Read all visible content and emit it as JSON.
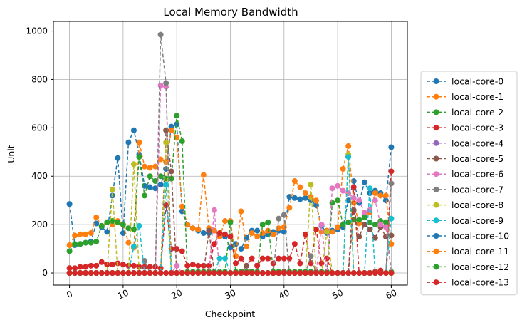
{
  "chart_data": {
    "type": "line",
    "title": "Local Memory Bandwidth",
    "xlabel": "Checkpoint",
    "ylabel": "Unit",
    "xlim": [
      -3,
      63
    ],
    "ylim": [
      -50,
      1040
    ],
    "x_ticks": [
      0,
      10,
      20,
      30,
      40,
      50,
      60
    ],
    "y_ticks": [
      0,
      200,
      400,
      600,
      800,
      1000
    ],
    "grid": true,
    "legend_position": "right-outside",
    "line_style": "dashed-with-markers",
    "series": [
      {
        "name": "local-core-0",
        "color": "#1f77b4",
        "values": [
          285,
          115,
          120,
          125,
          130,
          205,
          190,
          170,
          320,
          475,
          165,
          540,
          590,
          490,
          360,
          355,
          350,
          365,
          430,
          605,
          615,
          255,
          200,
          185,
          175,
          165,
          165,
          175,
          160,
          150,
          105,
          120,
          100,
          145,
          175,
          175,
          150,
          160,
          170,
          175,
          170,
          315,
          310,
          305,
          310,
          300,
          280,
          195,
          165,
          175,
          180,
          190,
          300,
          380,
          290,
          375,
          330,
          340,
          330,
          300,
          520
        ]
      },
      {
        "name": "local-core-1",
        "color": "#ff7f0e",
        "values": [
          115,
          155,
          160,
          160,
          165,
          230,
          195,
          210,
          200,
          215,
          200,
          125,
          105,
          540,
          440,
          435,
          440,
          470,
          460,
          590,
          560,
          275,
          200,
          185,
          180,
          405,
          185,
          175,
          150,
          215,
          215,
          70,
          255,
          110,
          165,
          150,
          165,
          175,
          160,
          185,
          190,
          270,
          380,
          355,
          330,
          315,
          300,
          170,
          175,
          170,
          190,
          430,
          525,
          290,
          205,
          240,
          250,
          330,
          320,
          320,
          120
        ]
      },
      {
        "name": "local-core-2",
        "color": "#2ca02c",
        "values": [
          90,
          120,
          120,
          125,
          125,
          130,
          195,
          210,
          215,
          210,
          200,
          185,
          180,
          480,
          320,
          400,
          380,
          400,
          390,
          390,
          650,
          545,
          5,
          5,
          5,
          5,
          5,
          5,
          5,
          5,
          210,
          5,
          5,
          5,
          5,
          5,
          200,
          210,
          5,
          5,
          5,
          5,
          5,
          5,
          5,
          5,
          5,
          5,
          5,
          290,
          300,
          200,
          210,
          220,
          220,
          230,
          210,
          200,
          215,
          210,
          5
        ]
      },
      {
        "name": "local-core-3",
        "color": "#d62728",
        "values": [
          20,
          20,
          25,
          25,
          30,
          30,
          45,
          35,
          35,
          40,
          35,
          30,
          30,
          25,
          25,
          25,
          25,
          20,
          280,
          100,
          100,
          90,
          30,
          35,
          30,
          30,
          30,
          120,
          165,
          160,
          150,
          40,
          60,
          30,
          60,
          30,
          60,
          60,
          40,
          60,
          60,
          60,
          120,
          40,
          160,
          40,
          180,
          40,
          60,
          0,
          0,
          0,
          0,
          355,
          0,
          0,
          0,
          5,
          10,
          0,
          420
        ]
      },
      {
        "name": "local-core-4",
        "color": "#9467bd",
        "values": [
          0,
          0,
          0,
          0,
          0,
          0,
          0,
          0,
          0,
          0,
          0,
          0,
          0,
          0,
          0,
          0,
          0,
          0,
          0,
          0,
          0,
          0,
          0,
          0,
          0,
          0,
          0,
          0,
          0,
          0,
          0,
          0,
          0,
          0,
          0,
          0,
          0,
          0,
          0,
          0,
          0,
          0,
          0,
          0,
          0,
          0,
          0,
          0,
          0,
          0,
          0,
          0,
          0,
          0,
          0,
          0,
          0,
          0,
          0,
          0,
          0
        ]
      },
      {
        "name": "local-core-5",
        "color": "#8c564b",
        "values": [
          0,
          0,
          0,
          0,
          0,
          0,
          0,
          0,
          0,
          0,
          0,
          0,
          0,
          0,
          0,
          0,
          0,
          0,
          590,
          420,
          0,
          0,
          0,
          0,
          0,
          0,
          175,
          0,
          0,
          0,
          0,
          0,
          0,
          30,
          0,
          0,
          0,
          0,
          0,
          0,
          5,
          0,
          0,
          0,
          0,
          0,
          5,
          0,
          0,
          0,
          0,
          0,
          0,
          260,
          150,
          200,
          180,
          145,
          190,
          150,
          155
        ]
      },
      {
        "name": "local-core-6",
        "color": "#e377c2",
        "values": [
          0,
          0,
          0,
          0,
          0,
          0,
          0,
          0,
          0,
          0,
          0,
          0,
          0,
          0,
          0,
          0,
          0,
          775,
          770,
          0,
          30,
          0,
          0,
          0,
          0,
          0,
          0,
          260,
          0,
          0,
          0,
          0,
          0,
          0,
          0,
          0,
          0,
          0,
          0,
          0,
          0,
          0,
          0,
          0,
          0,
          0,
          0,
          200,
          0,
          350,
          360,
          340,
          330,
          310,
          300,
          250,
          260,
          300,
          200,
          190,
          0
        ]
      },
      {
        "name": "local-core-7",
        "color": "#7f7f7f",
        "values": [
          0,
          0,
          0,
          0,
          0,
          0,
          0,
          0,
          0,
          0,
          0,
          0,
          0,
          0,
          50,
          0,
          0,
          985,
          785,
          0,
          0,
          0,
          0,
          0,
          0,
          0,
          0,
          0,
          0,
          0,
          0,
          0,
          0,
          0,
          0,
          0,
          0,
          0,
          0,
          225,
          240,
          0,
          0,
          0,
          0,
          70,
          0,
          0,
          0,
          0,
          0,
          0,
          0,
          0,
          0,
          0,
          0,
          0,
          0,
          0,
          370
        ]
      },
      {
        "name": "local-core-8",
        "color": "#bcbd22",
        "values": [
          0,
          0,
          0,
          0,
          0,
          0,
          0,
          0,
          345,
          0,
          0,
          0,
          450,
          0,
          0,
          0,
          0,
          0,
          540,
          0,
          0,
          0,
          0,
          0,
          0,
          0,
          0,
          0,
          0,
          0,
          0,
          0,
          0,
          0,
          0,
          0,
          0,
          0,
          0,
          0,
          0,
          0,
          0,
          0,
          0,
          365,
          0,
          0,
          170,
          0,
          0,
          0,
          490,
          0,
          0,
          0,
          0,
          0,
          0,
          0,
          0
        ]
      },
      {
        "name": "local-core-9",
        "color": "#17becf",
        "values": [
          0,
          0,
          0,
          0,
          0,
          0,
          0,
          0,
          0,
          0,
          0,
          0,
          110,
          195,
          0,
          0,
          0,
          0,
          365,
          0,
          0,
          0,
          0,
          0,
          0,
          0,
          0,
          0,
          60,
          60,
          0,
          0,
          0,
          0,
          0,
          0,
          0,
          0,
          0,
          0,
          0,
          0,
          0,
          0,
          0,
          0,
          0,
          0,
          0,
          0,
          0,
          0,
          480,
          0,
          0,
          0,
          350,
          0,
          0,
          0,
          225
        ]
      },
      {
        "name": "local-core-10",
        "color": "#1f77b4",
        "values": [
          0,
          0,
          0,
          0,
          0,
          0,
          0,
          0,
          0,
          0,
          0,
          0,
          0,
          0,
          0,
          0,
          0,
          0,
          0,
          0,
          0,
          0,
          0,
          0,
          0,
          0,
          0,
          0,
          0,
          0,
          0,
          0,
          0,
          0,
          0,
          0,
          0,
          0,
          0,
          0,
          0,
          0,
          0,
          0,
          0,
          0,
          0,
          0,
          0,
          0,
          0,
          0,
          0,
          0,
          0,
          0,
          0,
          0,
          0,
          0,
          0
        ]
      },
      {
        "name": "local-core-11",
        "color": "#ff7f0e",
        "values": [
          0,
          0,
          0,
          0,
          0,
          0,
          0,
          0,
          0,
          0,
          0,
          0,
          0,
          0,
          0,
          0,
          0,
          0,
          0,
          0,
          0,
          0,
          0,
          0,
          0,
          0,
          0,
          0,
          0,
          0,
          0,
          0,
          0,
          0,
          0,
          0,
          0,
          0,
          0,
          0,
          0,
          0,
          0,
          0,
          0,
          0,
          0,
          0,
          0,
          0,
          0,
          0,
          0,
          0,
          0,
          0,
          0,
          0,
          0,
          0,
          0
        ]
      },
      {
        "name": "local-core-12",
        "color": "#2ca02c",
        "values": [
          0,
          0,
          0,
          0,
          0,
          0,
          0,
          0,
          0,
          0,
          0,
          0,
          0,
          0,
          0,
          0,
          0,
          0,
          0,
          0,
          0,
          0,
          0,
          0,
          0,
          0,
          0,
          0,
          0,
          0,
          0,
          0,
          0,
          0,
          0,
          0,
          0,
          0,
          0,
          0,
          0,
          0,
          0,
          0,
          0,
          0,
          0,
          0,
          0,
          0,
          0,
          0,
          0,
          0,
          0,
          0,
          0,
          0,
          0,
          0,
          0
        ]
      },
      {
        "name": "local-core-13",
        "color": "#d62728",
        "values": [
          0,
          0,
          0,
          0,
          0,
          0,
          0,
          0,
          0,
          0,
          0,
          0,
          0,
          0,
          0,
          0,
          0,
          0,
          0,
          0,
          0,
          0,
          0,
          0,
          0,
          0,
          0,
          0,
          0,
          0,
          0,
          0,
          0,
          0,
          0,
          0,
          0,
          0,
          0,
          0,
          0,
          0,
          0,
          0,
          0,
          0,
          0,
          0,
          0,
          0,
          0,
          0,
          0,
          0,
          0,
          0,
          0,
          0,
          0,
          0,
          0
        ]
      }
    ]
  }
}
